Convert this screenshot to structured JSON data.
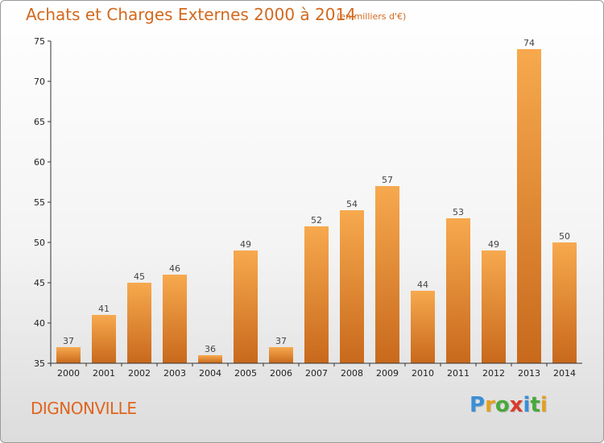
{
  "header": {
    "title": "Achats et Charges Externes 2000 à 2014",
    "unit_note": "(en milliers d'€)"
  },
  "footer": {
    "commune": "DIGNONVILLE",
    "logo_text": "Proxiti",
    "logo_letters": [
      {
        "ch": "P",
        "color": "#3a8fd6"
      },
      {
        "ch": "r",
        "color": "#e2a021"
      },
      {
        "ch": "o",
        "color": "#4aa83c"
      },
      {
        "ch": "x",
        "color": "#d93a2b"
      },
      {
        "ch": "i",
        "color": "#3a8fd6"
      },
      {
        "ch": "t",
        "color": "#4aa83c"
      },
      {
        "ch": "i",
        "color": "#e2a021"
      }
    ]
  },
  "chart_data": {
    "type": "bar",
    "categories": [
      "2000",
      "2001",
      "2002",
      "2003",
      "2004",
      "2005",
      "2006",
      "2007",
      "2008",
      "2009",
      "2010",
      "2011",
      "2012",
      "2013",
      "2014"
    ],
    "values": [
      37,
      41,
      45,
      46,
      36,
      49,
      37,
      52,
      54,
      57,
      44,
      53,
      49,
      74,
      50
    ],
    "title": "Achats et Charges Externes 2000 à 2014",
    "subtitle": "(en milliers d'€)",
    "ylim": [
      35,
      75
    ],
    "yticks": [
      35,
      40,
      45,
      50,
      55,
      60,
      65,
      70,
      75
    ],
    "grid": false,
    "bar_color_light": "#f7a94e",
    "bar_color_dark": "#c8691c",
    "axis_color": "#333333",
    "label_color": "#444444"
  }
}
